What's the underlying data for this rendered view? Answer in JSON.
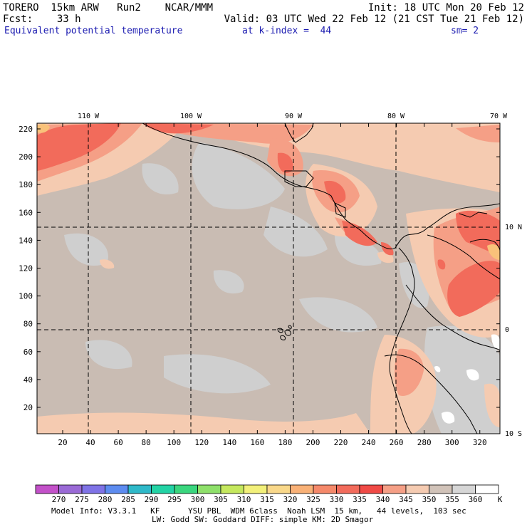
{
  "header": {
    "line1_left": "TORERO  15km ARW   Run2    NCAR/MMM",
    "line1_right": "Init: 18 UTC Mon 20 Feb 12",
    "line2_left": "Fcst:    33 h",
    "line2_right": "Valid: 03 UTC Wed 22 Feb 12 (21 CST Tue 21 Feb 12)",
    "field_name": "Equivalent potential temperature",
    "level": "at k-index =  44",
    "smoothing": "sm= 2"
  },
  "map": {
    "longitude_labels": [
      "110 W",
      "100 W",
      "90 W",
      "80 W",
      "70 W"
    ],
    "latitude_labels": [
      "10 N",
      "0",
      "10 S"
    ],
    "x_ticks": [
      "20",
      "40",
      "60",
      "80",
      "100",
      "120",
      "140",
      "160",
      "180",
      "200",
      "220",
      "240",
      "260",
      "280",
      "300",
      "320"
    ],
    "y_ticks": [
      "220",
      "200",
      "180",
      "160",
      "140",
      "120",
      "100",
      "80",
      "60",
      "40",
      "20"
    ],
    "colors": {
      "ocean_main": "#c9bcb3",
      "ocean_light": "#cfcfcf",
      "warm1": "#f5cbb1",
      "warm2": "#f59f86",
      "warm3": "#f26b5b",
      "warm4": "#f9c27a",
      "land_gray": "#d6d6d6"
    }
  },
  "colorbar": {
    "ticks": [
      "270",
      "275",
      "280",
      "285",
      "290",
      "295",
      "300",
      "305",
      "310",
      "315",
      "320",
      "325",
      "330",
      "335",
      "340",
      "345",
      "350",
      "355",
      "360"
    ],
    "unit": "K",
    "colors": [
      "#c351c9",
      "#9a6ad6",
      "#7f73e6",
      "#5d8cf0",
      "#2fb9c9",
      "#23d3a5",
      "#3ad67e",
      "#8ee06a",
      "#c5e85e",
      "#f2f07a",
      "#f9d88a",
      "#f9b177",
      "#f5896a",
      "#f26b5b",
      "#f04a46",
      "#f59f86",
      "#f5cbb1",
      "#d1c3b9",
      "#d6d6d6",
      "#ffffff"
    ]
  },
  "footer": {
    "line1": "Model Info: V3.3.1   KF      YSU PBL  WDM 6class  Noah LSM  15 km,   44 levels,  103 sec",
    "line2": "LW: Godd SW: Goddard DIFF: simple KM: 2D Smagor"
  }
}
